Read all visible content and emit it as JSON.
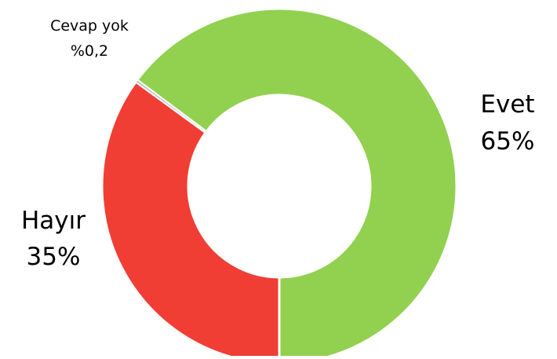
{
  "chart_data": {
    "type": "pie",
    "donut": true,
    "title": "",
    "slices": [
      {
        "name": "Evet",
        "value": 64.8,
        "value_label": "65%",
        "color": "#92d050"
      },
      {
        "name": "Hayır",
        "value": 35.0,
        "value_label": "35%",
        "color": "#f03e35"
      },
      {
        "name": "Cevap yok",
        "value": 0.2,
        "value_label": "%0,2",
        "color": "#a6a6a6"
      }
    ],
    "legend": "none"
  }
}
